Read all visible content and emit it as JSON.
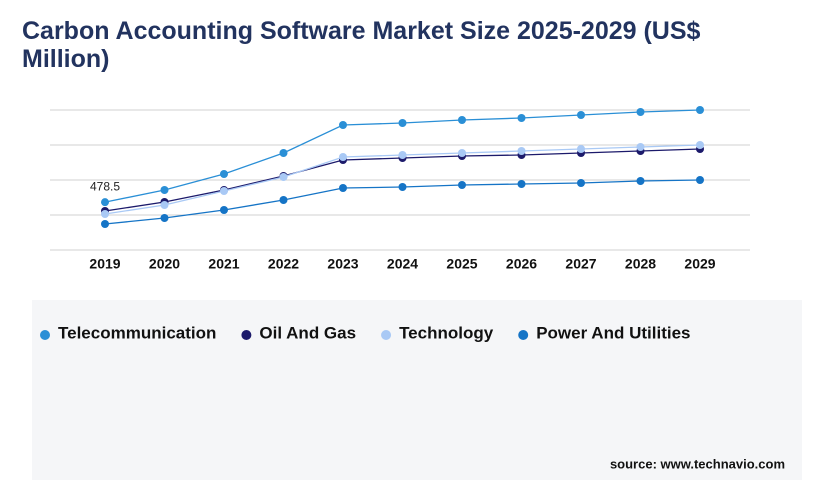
{
  "chart_data": {
    "type": "line",
    "title": "Carbon Accounting Software Market Size 2025-2029 (US$ Million)",
    "categories": [
      "2019",
      "2020",
      "2021",
      "2022",
      "2023",
      "2024",
      "2025",
      "2026",
      "2027",
      "2028",
      "2029"
    ],
    "series": [
      {
        "name": "Telecommunication",
        "color": "#2a8fd6",
        "values": [
          478.5,
          600,
          760,
          970,
          1250,
          1270,
          1300,
          1320,
          1350,
          1380,
          1400
        ]
      },
      {
        "name": "Oil And Gas",
        "color": "#1c1a6b",
        "values": [
          390,
          480,
          600,
          740,
          900,
          920,
          940,
          950,
          970,
          990,
          1010
        ]
      },
      {
        "name": "Technology",
        "color": "#a9c9f5",
        "values": [
          360,
          450,
          590,
          730,
          930,
          950,
          970,
          990,
          1010,
          1030,
          1050
        ]
      },
      {
        "name": "Power And Utilities",
        "color": "#1574c6",
        "values": [
          260,
          320,
          400,
          500,
          620,
          630,
          650,
          660,
          670,
          690,
          700
        ]
      }
    ],
    "ylim": [
      0,
      1400
    ],
    "gridlines": [
      0,
      350,
      700,
      1050,
      1400
    ],
    "source": "source: www.technavio.com"
  }
}
